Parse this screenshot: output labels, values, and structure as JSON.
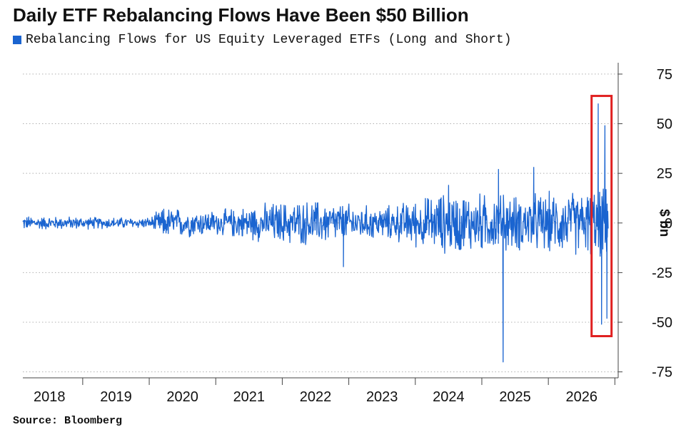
{
  "header": {
    "title": "Daily ETF Rebalancing Flows Have Been $50 Billion",
    "legend_label": "Rebalancing Flows for US Equity Leveraged ETFs (Long and Short)"
  },
  "footer": {
    "source": "Source: Bloomberg"
  },
  "colors": {
    "series": "#1a64d0",
    "highlight_box": "#e02020",
    "grid": "#b0b0b0",
    "axis": "#444444"
  },
  "chart_data": {
    "type": "line",
    "title": "Daily ETF Rebalancing Flows Have Been $50 Billion",
    "ylabel": "$ bn",
    "xlabel": "",
    "ylim": [
      -78,
      80
    ],
    "xlim": [
      2017.6,
      2026.55
    ],
    "y_ticks": [
      75,
      50,
      25,
      0,
      -25,
      -50,
      -75
    ],
    "y_tick_labels": [
      "75",
      "50",
      "25",
      "0",
      "-25",
      "-50",
      "-75"
    ],
    "x_ticks": [
      2018,
      2019,
      2020,
      2021,
      2022,
      2023,
      2024,
      2025,
      2026
    ],
    "x_tick_labels": [
      "2018",
      "2019",
      "2020",
      "2021",
      "2022",
      "2023",
      "2024",
      "2025",
      "2026"
    ],
    "grid": "horizontal dotted",
    "legend_position": "top-left",
    "series": [
      {
        "name": "Rebalancing Flows for US Equity Leveraged ETFs (Long and Short)",
        "amplitude_envelope": [
          {
            "year": 2017.6,
            "max_abs": 4
          },
          {
            "year": 2019.5,
            "max_abs": 3
          },
          {
            "year": 2019.72,
            "max_abs": 9
          },
          {
            "year": 2020.5,
            "max_abs": 7
          },
          {
            "year": 2021.4,
            "max_abs": 12
          },
          {
            "year": 2022.0,
            "max_abs": 13
          },
          {
            "year": 2023.0,
            "max_abs": 9
          },
          {
            "year": 2024.0,
            "max_abs": 18
          },
          {
            "year": 2025.0,
            "max_abs": 16
          },
          {
            "year": 2025.8,
            "max_abs": 18
          },
          {
            "year": 2026.55,
            "max_abs": 20
          }
        ],
        "extremes": [
          {
            "year": 2022.42,
            "value": -22
          },
          {
            "year": 2024.0,
            "value": 19
          },
          {
            "year": 2024.75,
            "value": 27
          },
          {
            "year": 2024.82,
            "value": -70
          },
          {
            "year": 2025.28,
            "value": 28
          },
          {
            "year": 2026.25,
            "value": 60
          },
          {
            "year": 2026.3,
            "value": -51
          },
          {
            "year": 2026.35,
            "value": 49
          },
          {
            "year": 2026.38,
            "value": -48
          }
        ]
      }
    ],
    "annotations": [
      {
        "type": "highlight_box",
        "x_range": [
          2026.15,
          2026.45
        ],
        "y_range": [
          -57,
          64
        ]
      }
    ]
  }
}
